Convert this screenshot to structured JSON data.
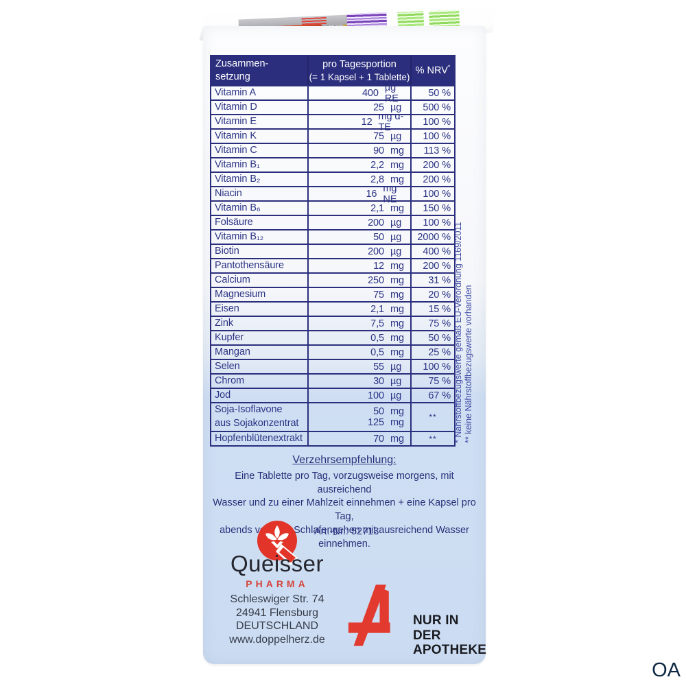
{
  "colors": {
    "navy": "#2b2e7d",
    "table_text": "#2b3384",
    "light_blue": "#cbdcf2",
    "brand_red": "#e23429",
    "apotheke_red": "#e23a2e",
    "black_text": "#191a1f"
  },
  "table": {
    "header": {
      "col1_line1": "Zusammen-",
      "col1_line2": "setzung",
      "col2_line1": "pro Tagesportion",
      "col2_line2": "(= 1 Kapsel + 1 Tablette)",
      "col3": "% NRV",
      "col3_note": "*"
    },
    "rows": [
      {
        "name": "Vitamin A",
        "amounts": [
          {
            "v": "400",
            "u": "µg RE"
          }
        ],
        "nrv": "50 %"
      },
      {
        "name": "Vitamin D",
        "amounts": [
          {
            "v": "25",
            "u": "µg"
          }
        ],
        "nrv": "500 %"
      },
      {
        "name": "Vitamin E",
        "amounts": [
          {
            "v": "12",
            "u": "mg α-TE"
          }
        ],
        "nrv": "100 %"
      },
      {
        "name": "Vitamin K",
        "amounts": [
          {
            "v": "75",
            "u": "µg"
          }
        ],
        "nrv": "100 %"
      },
      {
        "name": "Vitamin C",
        "amounts": [
          {
            "v": "90",
            "u": "mg"
          }
        ],
        "nrv": "113 %"
      },
      {
        "name": "Vitamin B₁",
        "amounts": [
          {
            "v": "2,2",
            "u": "mg"
          }
        ],
        "nrv": "200 %"
      },
      {
        "name": "Vitamin B₂",
        "amounts": [
          {
            "v": "2,8",
            "u": "mg"
          }
        ],
        "nrv": "200 %"
      },
      {
        "name": "Niacin",
        "amounts": [
          {
            "v": "16",
            "u": "mg NE"
          }
        ],
        "nrv": "100 %"
      },
      {
        "name": "Vitamin B₆",
        "amounts": [
          {
            "v": "2,1",
            "u": "mg"
          }
        ],
        "nrv": "150 %"
      },
      {
        "name": "Folsäure",
        "amounts": [
          {
            "v": "200",
            "u": "µg"
          }
        ],
        "nrv": "100 %"
      },
      {
        "name": "Vitamin B₁₂",
        "amounts": [
          {
            "v": "50",
            "u": "µg"
          }
        ],
        "nrv": "2000 %"
      },
      {
        "name": "Biotin",
        "amounts": [
          {
            "v": "200",
            "u": "µg"
          }
        ],
        "nrv": "400 %"
      },
      {
        "name": "Pantothensäure",
        "amounts": [
          {
            "v": "12",
            "u": "mg"
          }
        ],
        "nrv": "200 %"
      },
      {
        "name": "Calcium",
        "amounts": [
          {
            "v": "250",
            "u": "mg"
          }
        ],
        "nrv": "31 %"
      },
      {
        "name": "Magnesium",
        "amounts": [
          {
            "v": "75",
            "u": "mg"
          }
        ],
        "nrv": "20 %"
      },
      {
        "name": "Eisen",
        "amounts": [
          {
            "v": "2,1",
            "u": "mg"
          }
        ],
        "nrv": "15 %"
      },
      {
        "name": "Zink",
        "amounts": [
          {
            "v": "7,5",
            "u": "mg"
          }
        ],
        "nrv": "75 %"
      },
      {
        "name": "Kupfer",
        "amounts": [
          {
            "v": "0,5",
            "u": "mg"
          }
        ],
        "nrv": "50 %"
      },
      {
        "name": "Mangan",
        "amounts": [
          {
            "v": "0,5",
            "u": "mg"
          }
        ],
        "nrv": "25 %"
      },
      {
        "name": "Selen",
        "amounts": [
          {
            "v": "55",
            "u": "µg"
          }
        ],
        "nrv": "100 %"
      },
      {
        "name": "Chrom",
        "amounts": [
          {
            "v": "30",
            "u": "µg"
          }
        ],
        "nrv": "75 %"
      },
      {
        "name": "Jod",
        "amounts": [
          {
            "v": "100",
            "u": "µg"
          }
        ],
        "nrv": "67 %"
      },
      {
        "name": "Soja-Isoflavone",
        "name2": "aus Sojakonzentrat",
        "amounts": [
          {
            "v": "50",
            "u": "mg"
          },
          {
            "v": "125",
            "u": "mg"
          }
        ],
        "nrv": "**"
      },
      {
        "name": "Hopfenblütenextrakt",
        "amounts": [
          {
            "v": "70",
            "u": "mg"
          }
        ],
        "nrv": "**"
      }
    ]
  },
  "footnotes": {
    "line1": "* Nährstoffbezugswerte gemäß EU-Verordnung 1169/2011",
    "line2": "** keine Nährstoffbezugswerte vorhanden"
  },
  "dosage": {
    "heading": "Verzehrsempfehlung:",
    "line1": "Eine Tablette pro Tag, vorzugsweise morgens, mit ausreichend",
    "line2": "Wasser und zu einer Mahlzeit einnehmen + eine Kapsel pro Tag,",
    "line3": "abends vor dem Schlafengehen mit ausreichend Wasser",
    "line4": "einnehmen."
  },
  "art_nr": {
    "text": "Art.-Nr.: 52713"
  },
  "manufacturer": {
    "name": "Queisser",
    "division": "PHARMA",
    "address_line1": "Schleswiger Str. 74",
    "address_line2": "24941 Flensburg",
    "address_line3": "DEUTSCHLAND",
    "website": "www.doppelherz.de"
  },
  "apotheke": {
    "line1": "NUR IN DER",
    "line2": "APOTHEKE"
  },
  "watermark": {
    "text": "OA"
  }
}
